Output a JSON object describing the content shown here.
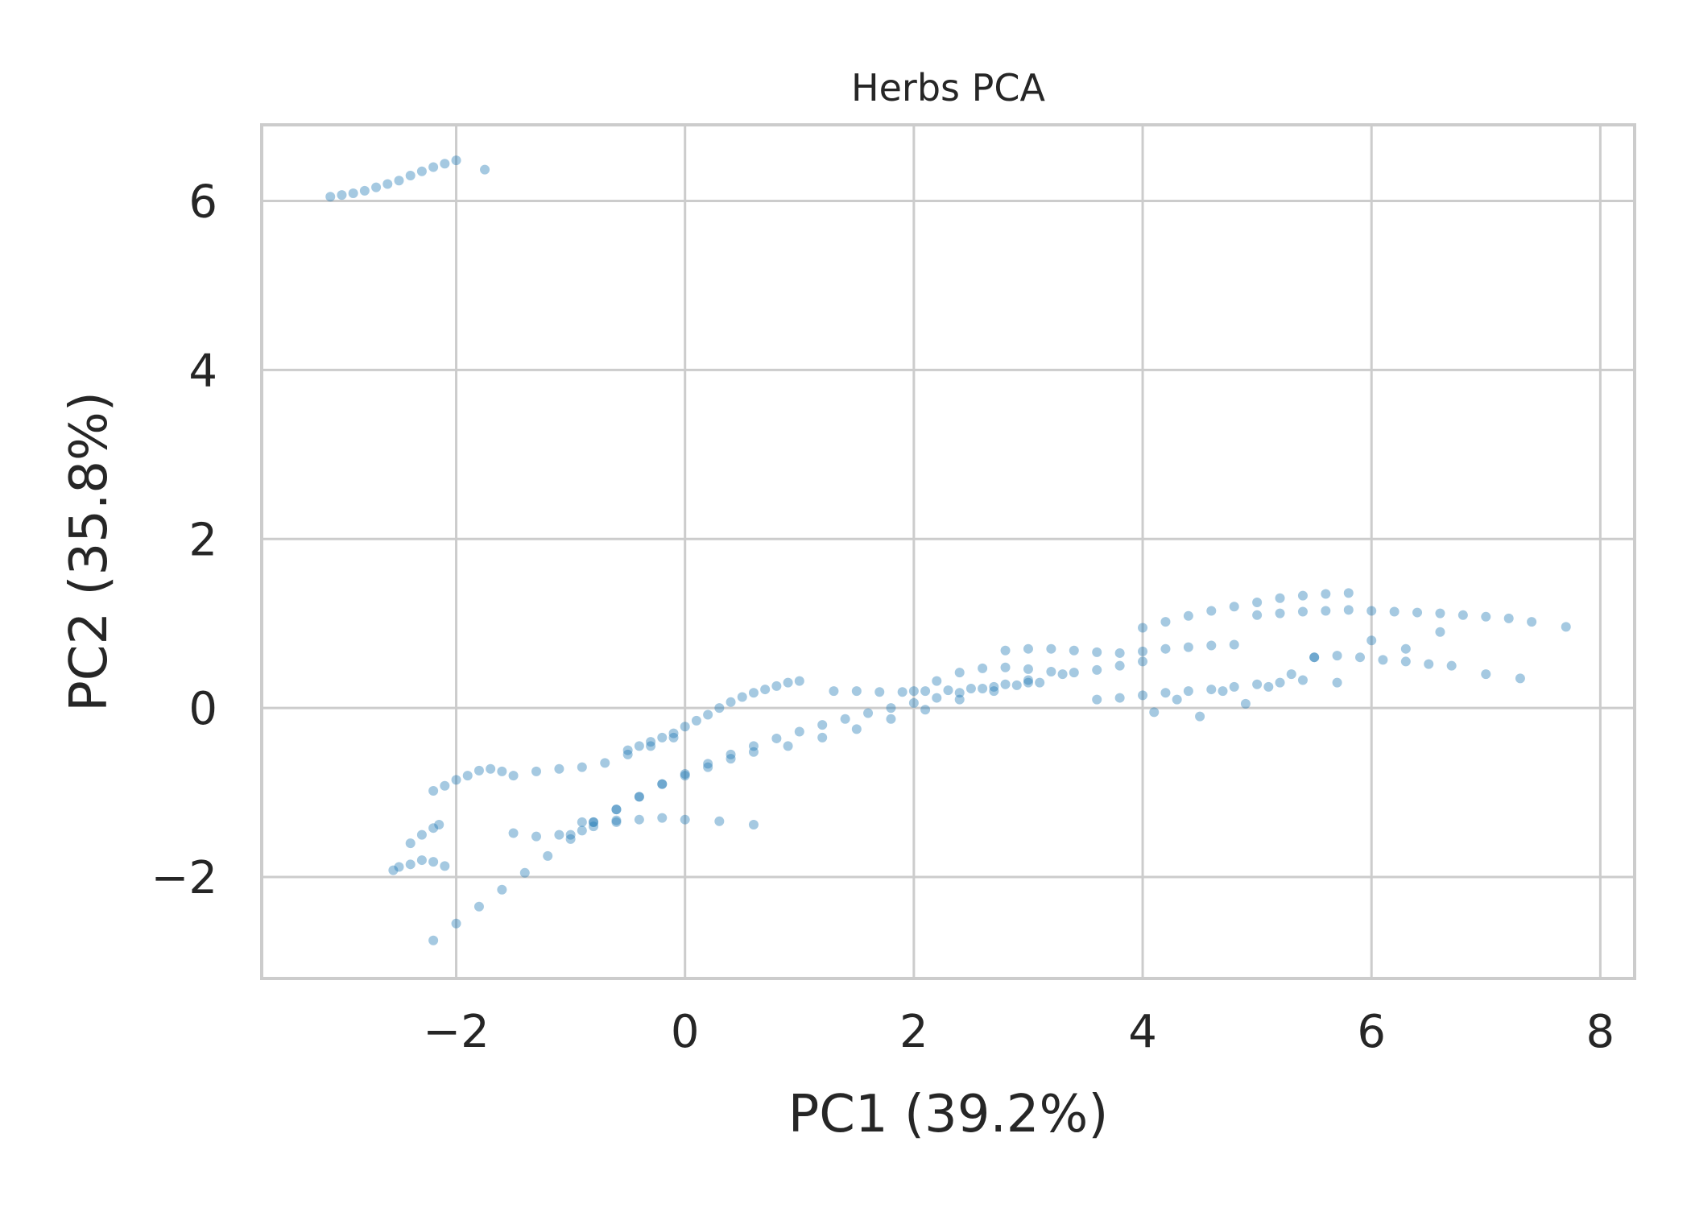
{
  "chart_data": {
    "type": "scatter",
    "title": "Herbs PCA",
    "xlabel": "PC1 (39.2%)",
    "ylabel": "PC2 (35.8%)",
    "xlim": [
      -3.7,
      8.3
    ],
    "ylim": [
      -3.2,
      6.9
    ],
    "xticks": [
      -2,
      0,
      2,
      4,
      6,
      8
    ],
    "yticks": [
      -2,
      0,
      2,
      4,
      6
    ],
    "xtick_labels": [
      "−2",
      "0",
      "2",
      "4",
      "6",
      "8"
    ],
    "ytick_labels": [
      "−2",
      "0",
      "2",
      "4",
      "6"
    ],
    "grid": true,
    "point_color": "#1f77b4",
    "point_alpha": 0.4,
    "series": [
      {
        "x": [
          -3.1,
          -3.0,
          -2.9,
          -2.8,
          -2.7,
          -2.6,
          -2.5,
          -2.4,
          -2.3,
          -2.2,
          -2.1,
          -2.0,
          -1.75,
          -2.55,
          -2.5,
          -2.4,
          -2.3,
          -2.2,
          -2.1,
          -2.4,
          -2.3,
          -2.2,
          -2.15,
          -2.2,
          -2.1,
          -2.0,
          -1.9,
          -1.8,
          -1.7,
          -1.6,
          -1.5,
          -1.3,
          -1.1,
          -0.9,
          -0.8,
          -0.6,
          -1.5,
          -1.3,
          -1.1,
          -0.9,
          -0.7,
          -0.5,
          -0.3,
          -0.1,
          -0.5,
          -0.4,
          -0.3,
          -0.2,
          -0.1,
          0.0,
          0.1,
          0.2,
          0.3,
          0.4,
          0.5,
          0.6,
          0.7,
          0.8,
          0.9,
          1.0,
          -1.0,
          -0.8,
          -0.6,
          -0.4,
          -0.2,
          0.0,
          0.2,
          0.4,
          0.6,
          -2.2,
          -2.0,
          -1.8,
          -1.6,
          -1.4,
          -1.2,
          -1.0,
          -0.8,
          -0.6,
          -0.4,
          -0.2,
          0.0,
          0.2,
          0.4,
          0.6,
          0.8,
          1.0,
          1.2,
          1.4,
          1.6,
          1.8,
          2.0,
          2.2,
          2.4,
          2.6,
          2.8,
          3.0,
          -0.9,
          -0.6,
          -0.4,
          -0.2,
          0.0,
          0.3,
          0.6,
          1.3,
          1.5,
          1.7,
          1.9,
          2.1,
          2.3,
          2.5,
          2.7,
          2.9,
          3.1,
          0.9,
          1.2,
          1.5,
          1.8,
          2.1,
          2.4,
          2.7,
          3.0,
          3.3,
          2.0,
          2.2,
          2.4,
          2.6,
          2.8,
          3.0,
          3.2,
          3.4,
          3.6,
          3.8,
          4.0,
          2.8,
          3.0,
          3.2,
          3.4,
          3.6,
          3.8,
          4.0,
          4.2,
          4.4,
          4.6,
          4.8,
          4.0,
          4.2,
          4.4,
          4.6,
          4.8,
          5.0,
          5.2,
          5.4,
          5.6,
          5.8,
          5.0,
          5.2,
          5.4,
          5.6,
          5.8,
          6.0,
          6.2,
          6.4,
          6.6,
          6.8,
          7.0,
          7.2,
          7.4,
          7.7,
          3.6,
          3.8,
          4.0,
          4.2,
          4.4,
          4.6,
          4.8,
          5.0,
          5.2,
          5.4,
          5.5,
          5.7,
          5.9,
          6.1,
          6.3,
          6.5,
          6.7,
          7.0,
          7.3,
          4.1,
          4.3,
          4.5,
          4.7,
          4.9,
          5.1,
          5.3,
          5.5,
          5.7,
          6.0,
          6.3,
          6.6
        ],
        "y": [
          6.05,
          6.07,
          6.09,
          6.12,
          6.16,
          6.2,
          6.24,
          6.3,
          6.35,
          6.4,
          6.44,
          6.48,
          6.37,
          -1.92,
          -1.88,
          -1.85,
          -1.8,
          -1.82,
          -1.87,
          -1.6,
          -1.5,
          -1.42,
          -1.38,
          -0.98,
          -0.92,
          -0.85,
          -0.8,
          -0.74,
          -0.72,
          -0.75,
          -1.48,
          -1.52,
          -1.5,
          -1.45,
          -1.4,
          -1.35,
          -0.8,
          -0.75,
          -0.72,
          -0.7,
          -0.65,
          -0.55,
          -0.45,
          -0.35,
          -0.5,
          -0.45,
          -0.4,
          -0.35,
          -0.3,
          -0.22,
          -0.15,
          -0.08,
          0.0,
          0.07,
          0.13,
          0.18,
          0.22,
          0.26,
          0.3,
          0.32,
          -1.5,
          -1.35,
          -1.2,
          -1.05,
          -0.9,
          -0.8,
          -0.7,
          -0.6,
          -0.52,
          -2.75,
          -2.55,
          -2.35,
          -2.15,
          -1.95,
          -1.75,
          -1.55,
          -1.35,
          -1.2,
          -1.05,
          -0.9,
          -0.78,
          -0.66,
          -0.55,
          -0.45,
          -0.36,
          -0.28,
          -0.2,
          -0.13,
          -0.06,
          0.0,
          0.06,
          0.12,
          0.18,
          0.23,
          0.28,
          0.33,
          -1.35,
          -1.33,
          -1.32,
          -1.3,
          -1.32,
          -1.34,
          -1.38,
          0.2,
          0.2,
          0.19,
          0.19,
          0.2,
          0.21,
          0.23,
          0.25,
          0.27,
          0.3,
          -0.45,
          -0.35,
          -0.25,
          -0.13,
          -0.02,
          0.1,
          0.2,
          0.3,
          0.4,
          0.2,
          0.32,
          0.42,
          0.47,
          0.48,
          0.46,
          0.43,
          0.42,
          0.45,
          0.5,
          0.55,
          0.68,
          0.7,
          0.7,
          0.68,
          0.66,
          0.65,
          0.67,
          0.7,
          0.72,
          0.74,
          0.75,
          0.95,
          1.02,
          1.09,
          1.15,
          1.2,
          1.25,
          1.3,
          1.33,
          1.35,
          1.36,
          1.1,
          1.12,
          1.14,
          1.15,
          1.16,
          1.15,
          1.14,
          1.13,
          1.12,
          1.1,
          1.08,
          1.06,
          1.02,
          0.96,
          0.1,
          0.12,
          0.15,
          0.18,
          0.2,
          0.22,
          0.25,
          0.28,
          0.3,
          0.33,
          0.6,
          0.62,
          0.6,
          0.57,
          0.55,
          0.52,
          0.5,
          0.4,
          0.35,
          -0.05,
          0.1,
          -0.1,
          0.2,
          0.05,
          0.25,
          0.4,
          0.6,
          0.3,
          0.8,
          0.7,
          0.9
        ]
      }
    ]
  }
}
